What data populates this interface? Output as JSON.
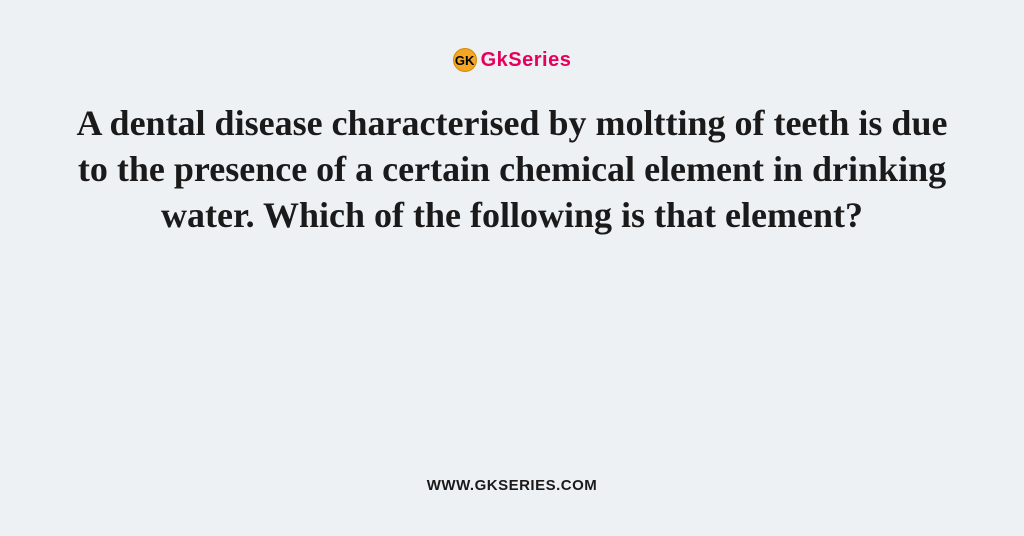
{
  "logo": {
    "icon_text": "GK",
    "brand_text": "GkSeries",
    "icon_bg_color": "#f5a623",
    "icon_border_color": "#d48806",
    "brand_color": "#e6005c"
  },
  "question": {
    "text": "A dental disease characterised by molt­ting of teeth is due to the presence of a certain chemical element in drinking water. Which of the following is that el­e­ment?",
    "fontsize": 36,
    "color": "#1a1a1a"
  },
  "footer": {
    "url": "WWW.GKSERIES.COM",
    "color": "#1a1a1a"
  },
  "background_color": "#eef1f4"
}
